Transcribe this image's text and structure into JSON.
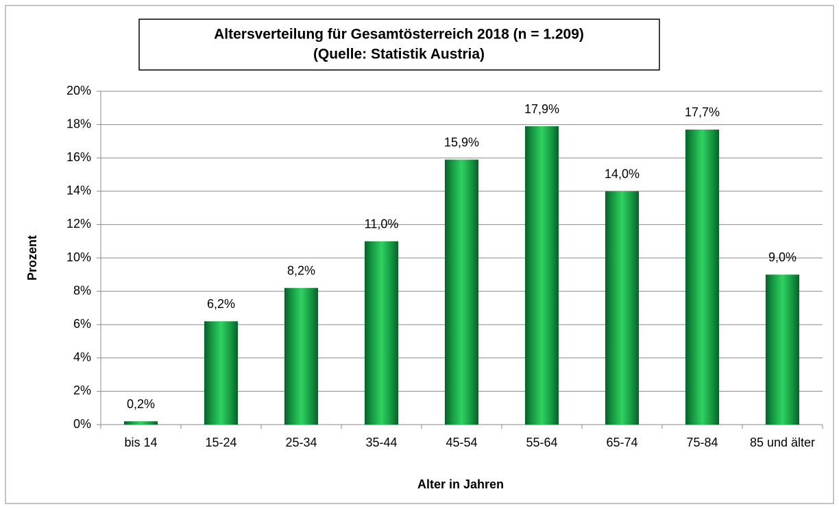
{
  "chart_data": {
    "type": "bar",
    "title": "Altersverteilung für Gesamtösterreich 2018 (n = 1.209)",
    "subtitle": "(Quelle: Statistik Austria)",
    "x_label": "Alter in Jahren",
    "y_label": "Prozent",
    "categories": [
      "bis 14",
      "15-24",
      "25-34",
      "35-44",
      "45-54",
      "55-64",
      "65-74",
      "75-84",
      "85 und älter"
    ],
    "values": [
      0.2,
      6.2,
      8.2,
      11.0,
      15.9,
      17.9,
      14.0,
      17.7,
      9.0
    ],
    "value_labels": [
      "0,2%",
      "6,2%",
      "8,2%",
      "11,0%",
      "15,9%",
      "17,9%",
      "14,0%",
      "17,7%",
      "9,0%"
    ],
    "color": "#1fa84a",
    "ylim": [
      0,
      20
    ],
    "yticks": [
      {
        "value": 0,
        "label": "0%"
      },
      {
        "value": 2,
        "label": "2%"
      },
      {
        "value": 4,
        "label": "4%"
      },
      {
        "value": 6,
        "label": "6%"
      },
      {
        "value": 8,
        "label": "8%"
      },
      {
        "value": 10,
        "label": "10%"
      },
      {
        "value": 12,
        "label": "12%"
      },
      {
        "value": 14,
        "label": "14%"
      },
      {
        "value": 16,
        "label": "16%"
      },
      {
        "value": 18,
        "label": "18%"
      },
      {
        "value": 20,
        "label": "20%"
      }
    ],
    "grid": true
  }
}
